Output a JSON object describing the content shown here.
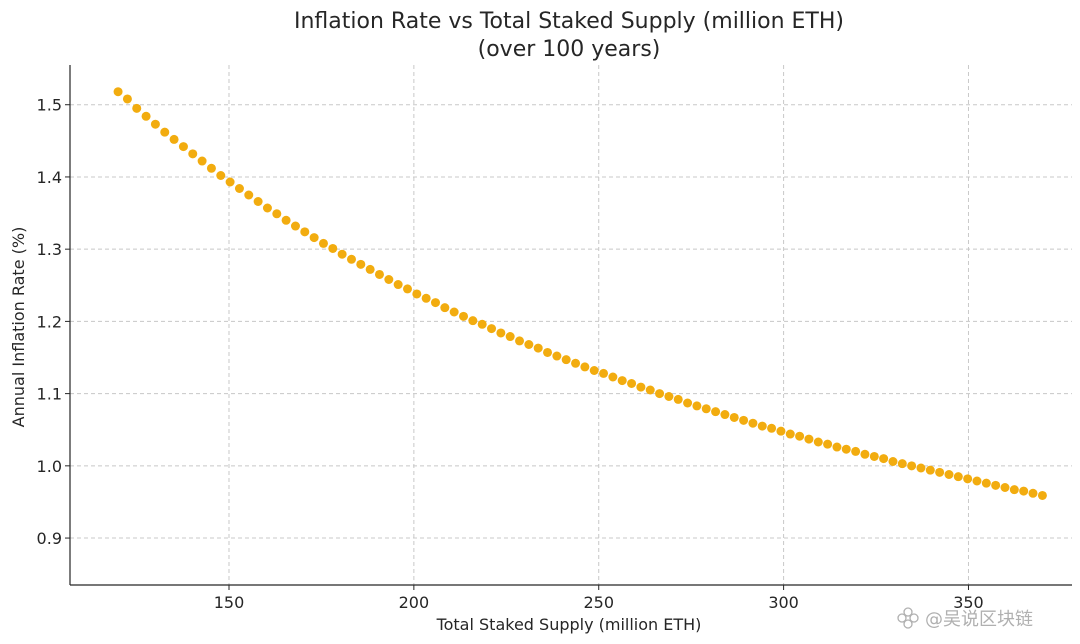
{
  "chart_data": {
    "type": "scatter",
    "title": "Inflation Rate vs Total Staked Supply (million ETH)",
    "subtitle": "(over 100 years)",
    "xlabel": "Total Staked Supply (million ETH)",
    "ylabel": "Annual Inflation Rate (%)",
    "xlim": [
      107,
      378
    ],
    "ylim": [
      0.835,
      1.555
    ],
    "xticks": [
      150,
      200,
      250,
      300,
      350
    ],
    "xtick_labels": [
      "150",
      "200",
      "250",
      "300",
      "350"
    ],
    "yticks": [
      0.9,
      1.0,
      1.1,
      1.2,
      1.3,
      1.4,
      1.5
    ],
    "ytick_labels": [
      "0.9",
      "1.0",
      "1.1",
      "1.2",
      "1.3",
      "1.4",
      "1.5"
    ],
    "grid": true,
    "series": [
      {
        "color": "#f2ac0f",
        "x_start": 120,
        "x_end": 370,
        "n_points": 100,
        "x": [
          120,
          122.53,
          125.05,
          127.58,
          130.1,
          132.63,
          135.15,
          137.68,
          140.2,
          142.73,
          145.25,
          147.78,
          150.3,
          152.83,
          155.35,
          157.88,
          160.4,
          162.93,
          165.45,
          167.98,
          170.5,
          173.03,
          175.55,
          178.08,
          180.6,
          183.13,
          185.65,
          188.18,
          190.7,
          193.23,
          195.75,
          198.28,
          200.8,
          203.33,
          205.85,
          208.38,
          210.9,
          213.43,
          215.95,
          218.48,
          221,
          223.53,
          226.05,
          228.58,
          231.1,
          233.63,
          236.15,
          238.68,
          241.2,
          243.73,
          246.25,
          248.78,
          251.3,
          253.83,
          256.35,
          258.88,
          261.4,
          263.93,
          266.45,
          268.98,
          271.5,
          274.03,
          276.55,
          279.08,
          281.6,
          284.13,
          286.65,
          289.18,
          291.7,
          294.23,
          296.75,
          299.28,
          301.8,
          304.33,
          306.85,
          309.38,
          311.9,
          314.43,
          316.95,
          319.48,
          322,
          324.53,
          327.05,
          329.58,
          332.1,
          334.63,
          337.15,
          339.68,
          342.2,
          344.73,
          347.25,
          349.78,
          352.3,
          354.83,
          357.35,
          359.88,
          362.4,
          364.93,
          367.45,
          370
        ],
        "y": [
          1.518,
          1.508,
          1.495,
          1.484,
          1.473,
          1.462,
          1.452,
          1.442,
          1.432,
          1.422,
          1.412,
          1.402,
          1.393,
          1.384,
          1.375,
          1.366,
          1.357,
          1.349,
          1.34,
          1.332,
          1.324,
          1.316,
          1.308,
          1.301,
          1.293,
          1.286,
          1.279,
          1.272,
          1.265,
          1.258,
          1.251,
          1.245,
          1.238,
          1.232,
          1.226,
          1.219,
          1.213,
          1.207,
          1.201,
          1.196,
          1.19,
          1.184,
          1.179,
          1.173,
          1.168,
          1.163,
          1.157,
          1.152,
          1.147,
          1.142,
          1.137,
          1.132,
          1.128,
          1.123,
          1.118,
          1.114,
          1.109,
          1.105,
          1.1,
          1.096,
          1.092,
          1.087,
          1.083,
          1.079,
          1.075,
          1.071,
          1.067,
          1.063,
          1.059,
          1.055,
          1.052,
          1.048,
          1.044,
          1.041,
          1.037,
          1.033,
          1.03,
          1.026,
          1.023,
          1.02,
          1.016,
          1.013,
          1.01,
          1.006,
          1.003,
          1.0,
          0.997,
          0.994,
          0.991,
          0.988,
          0.985,
          0.982,
          0.979,
          0.976,
          0.973,
          0.97,
          0.967,
          0.965,
          0.962,
          0.959
        ]
      }
    ]
  },
  "watermark": {
    "icon": "flower-logo-icon",
    "text": "@吴说区块链"
  }
}
